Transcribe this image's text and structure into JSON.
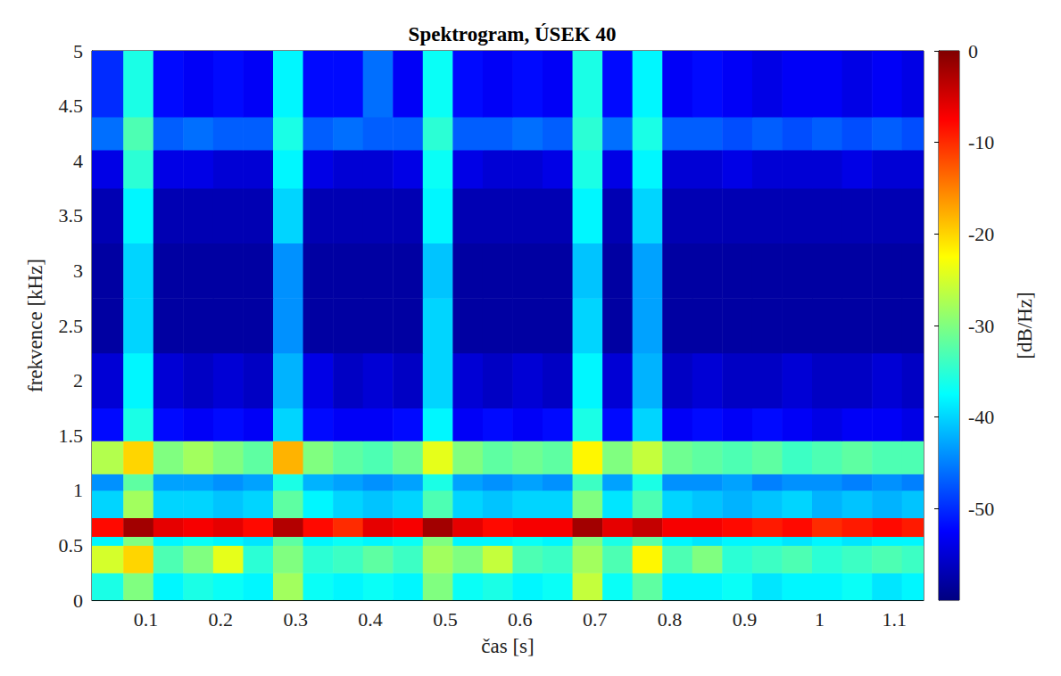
{
  "chart_data": {
    "type": "heatmap",
    "title": "Spektrogram, ÚSEK 40",
    "x_label": "čas [s]",
    "y_label": "frekvence [kHz]",
    "xlim": [
      0.028,
      1.139
    ],
    "xticks": [
      0.1,
      0.2,
      0.3,
      0.4,
      0.5,
      0.6,
      0.7,
      0.8,
      0.9,
      1,
      1.1
    ],
    "ylim": [
      0,
      5
    ],
    "yticks": [
      0,
      0.5,
      1,
      1.5,
      2,
      2.5,
      3,
      3.5,
      4,
      4.5,
      5
    ],
    "grid": false,
    "time_edges": [
      0.028,
      0.07,
      0.11,
      0.15,
      0.19,
      0.23,
      0.27,
      0.31,
      0.35,
      0.39,
      0.43,
      0.47,
      0.51,
      0.55,
      0.59,
      0.63,
      0.67,
      0.71,
      0.75,
      0.79,
      0.83,
      0.87,
      0.91,
      0.95,
      0.99,
      1.03,
      1.07,
      1.11,
      1.139
    ],
    "frequency_edges": [
      0,
      0.25,
      0.5,
      0.58,
      0.75,
      1.0,
      1.15,
      1.45,
      1.75,
      2.25,
      2.75,
      3.25,
      3.75,
      4.1,
      4.4,
      5.0
    ],
    "cells": [
      [
        -36,
        -30,
        -38,
        -36,
        -37,
        -38,
        -28,
        -37,
        -38,
        -37,
        -38,
        -30,
        -37,
        -36,
        -38,
        -37,
        -26,
        -37,
        -32,
        -38,
        -38,
        -37,
        -39,
        -38,
        -38,
        -37,
        -39,
        -38
      ],
      [
        -25,
        -20,
        -33,
        -30,
        -24,
        -35,
        -30,
        -35,
        -34,
        -32,
        -34,
        -28,
        -30,
        -26,
        -33,
        -34,
        -28,
        -33,
        -22,
        -33,
        -30,
        -35,
        -34,
        -33,
        -35,
        -34,
        -33,
        -34
      ],
      [
        -38,
        -30,
        -38,
        -37,
        -38,
        -39,
        -32,
        -38,
        -37,
        -38,
        -37,
        -30,
        -38,
        -38,
        -37,
        -38,
        -30,
        -36,
        -32,
        -38,
        -39,
        -38,
        -38,
        -39,
        -38,
        -39,
        -38,
        -38
      ],
      [
        -8,
        -2,
        -6,
        -7,
        -6,
        -8,
        -3,
        -8,
        -10,
        -6,
        -7,
        -2,
        -6,
        -8,
        -7,
        -7,
        -2,
        -6,
        -4,
        -7,
        -7,
        -8,
        -9,
        -8,
        -10,
        -9,
        -8,
        -9
      ],
      [
        -40,
        -28,
        -40,
        -40,
        -41,
        -40,
        -32,
        -38,
        -40,
        -41,
        -40,
        -33,
        -40,
        -41,
        -40,
        -40,
        -30,
        -39,
        -33,
        -40,
        -41,
        -42,
        -41,
        -40,
        -42,
        -41,
        -42,
        -41
      ],
      [
        -44,
        -32,
        -43,
        -43,
        -44,
        -43,
        -36,
        -42,
        -43,
        -44,
        -43,
        -36,
        -43,
        -44,
        -43,
        -44,
        -34,
        -43,
        -36,
        -44,
        -44,
        -43,
        -45,
        -44,
        -44,
        -45,
        -44,
        -45
      ],
      [
        -27,
        -20,
        -30,
        -28,
        -30,
        -32,
        -18,
        -30,
        -32,
        -33,
        -31,
        -24,
        -30,
        -32,
        -31,
        -32,
        -22,
        -30,
        -26,
        -31,
        -32,
        -33,
        -32,
        -34,
        -33,
        -32,
        -33,
        -33
      ],
      [
        -52,
        -36,
        -52,
        -53,
        -52,
        -53,
        -40,
        -52,
        -53,
        -53,
        -52,
        -38,
        -53,
        -52,
        -53,
        -52,
        -36,
        -52,
        -40,
        -53,
        -52,
        -53,
        -52,
        -53,
        -54,
        -53,
        -53,
        -54
      ],
      [
        -55,
        -38,
        -55,
        -56,
        -55,
        -56,
        -42,
        -54,
        -56,
        -55,
        -56,
        -40,
        -55,
        -56,
        -55,
        -56,
        -38,
        -55,
        -42,
        -56,
        -55,
        -56,
        -56,
        -55,
        -56,
        -56,
        -55,
        -56
      ],
      [
        -58,
        -40,
        -58,
        -58,
        -58,
        -58,
        -44,
        -58,
        -58,
        -58,
        -58,
        -40,
        -58,
        -58,
        -58,
        -58,
        -40,
        -58,
        -43,
        -58,
        -58,
        -58,
        -58,
        -58,
        -58,
        -58,
        -58,
        -58
      ],
      [
        -58,
        -40,
        -58,
        -58,
        -58,
        -58,
        -44,
        -58,
        -58,
        -58,
        -58,
        -41,
        -58,
        -58,
        -58,
        -58,
        -41,
        -58,
        -43,
        -58,
        -58,
        -58,
        -58,
        -58,
        -58,
        -58,
        -58,
        -58
      ],
      [
        -57,
        -38,
        -57,
        -57,
        -57,
        -57,
        -40,
        -57,
        -57,
        -57,
        -57,
        -38,
        -57,
        -57,
        -57,
        -57,
        -38,
        -57,
        -40,
        -57,
        -57,
        -57,
        -57,
        -57,
        -57,
        -57,
        -57,
        -57
      ],
      [
        -54,
        -35,
        -54,
        -54,
        -55,
        -55,
        -38,
        -54,
        -55,
        -55,
        -54,
        -37,
        -54,
        -55,
        -55,
        -54,
        -36,
        -54,
        -38,
        -55,
        -55,
        -54,
        -55,
        -55,
        -55,
        -54,
        -55,
        -55
      ],
      [
        -46,
        -33,
        -47,
        -46,
        -47,
        -47,
        -36,
        -47,
        -46,
        -47,
        -47,
        -35,
        -47,
        -47,
        -46,
        -47,
        -35,
        -46,
        -36,
        -47,
        -47,
        -48,
        -47,
        -48,
        -47,
        -48,
        -47,
        -48
      ],
      [
        -50,
        -36,
        -52,
        -53,
        -52,
        -53,
        -38,
        -52,
        -52,
        -46,
        -53,
        -37,
        -52,
        -53,
        -52,
        -53,
        -36,
        -52,
        -38,
        -53,
        -52,
        -53,
        -54,
        -53,
        -53,
        -54,
        -53,
        -54
      ]
    ],
    "colorbar": {
      "label": "[dB/Hz]",
      "range": [
        -60,
        0
      ],
      "ticks": [
        -50,
        -40,
        -30,
        -20,
        -10,
        0
      ]
    }
  }
}
